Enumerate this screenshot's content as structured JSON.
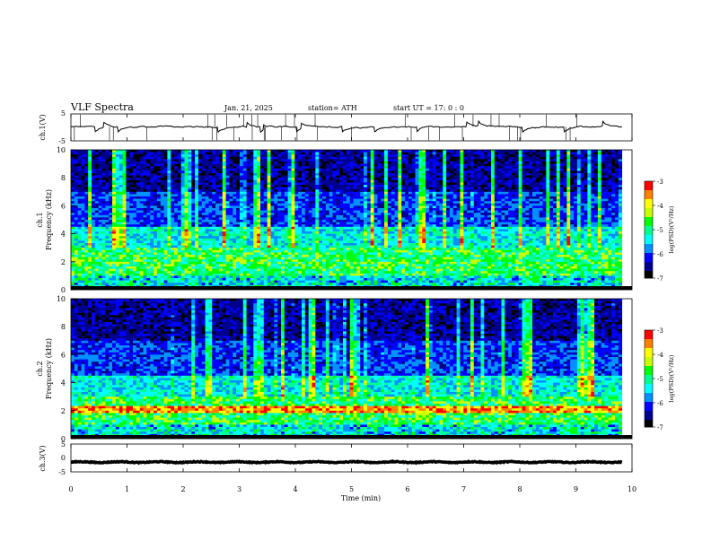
{
  "header": {
    "title": "VLF  Spectra",
    "date": "Jan. 21, 2025",
    "station": "station= ATH",
    "start": "start  UT  =   17: 0  : 0"
  },
  "chart_data": [
    {
      "type": "line",
      "ylabel": "ch.1(V)",
      "ylim": [
        -5,
        5
      ],
      "y_ticks": [
        "5",
        "-5"
      ],
      "description_values": {
        "baseline_V": 0.2,
        "noise_V": 0.6
      }
    },
    {
      "type": "heatmap",
      "ylabel": "ch.1\nFrequency  (kHz)",
      "ylabel_lines": [
        "ch.1",
        "Frequency  (kHz)"
      ],
      "ylim": [
        0,
        10
      ],
      "y_ticks": [
        "0",
        "2",
        "4",
        "6",
        "8",
        "10"
      ],
      "colorbar": {
        "label": "log(PSD)(V²/Hz)",
        "ticks": [
          "-3",
          "-4",
          "-5",
          "-6",
          "-7"
        ],
        "range": [
          -7,
          -3
        ]
      }
    },
    {
      "type": "heatmap",
      "ylabel": "ch.2\nFrequency  (kHz)",
      "ylabel_lines": [
        "ch.2",
        "Frequency  (kHz)"
      ],
      "ylim": [
        0,
        10
      ],
      "y_ticks": [
        "0",
        "2",
        "4",
        "6",
        "8",
        "10"
      ],
      "colorbar": {
        "label": "log(PSD)(V²/Hz)",
        "ticks": [
          "-3",
          "-4",
          "-5",
          "-6",
          "-7"
        ],
        "range": [
          -7,
          -3
        ]
      }
    },
    {
      "type": "line",
      "ylabel": "ch.3(V)",
      "ylim": [
        -5,
        5
      ],
      "y_ticks": [
        "5",
        "0",
        "-5"
      ],
      "description_values": {
        "baseline_V": -1.5
      }
    }
  ],
  "xaxis": {
    "label": "Time  (min)",
    "ticks": [
      "0",
      "1",
      "2",
      "3",
      "4",
      "5",
      "6",
      "7",
      "8",
      "9",
      "10"
    ],
    "range": [
      0,
      10
    ],
    "data_end": 9.82
  },
  "colors": {
    "axis": "#000000",
    "trace": "#000000",
    "colormap": [
      "#000000",
      "#00008c",
      "#0000ff",
      "#0090ff",
      "#00ffff",
      "#00ff90",
      "#00ff00",
      "#c8ff00",
      "#ffff00",
      "#ff8000",
      "#ff0000",
      "#ffffff"
    ]
  }
}
